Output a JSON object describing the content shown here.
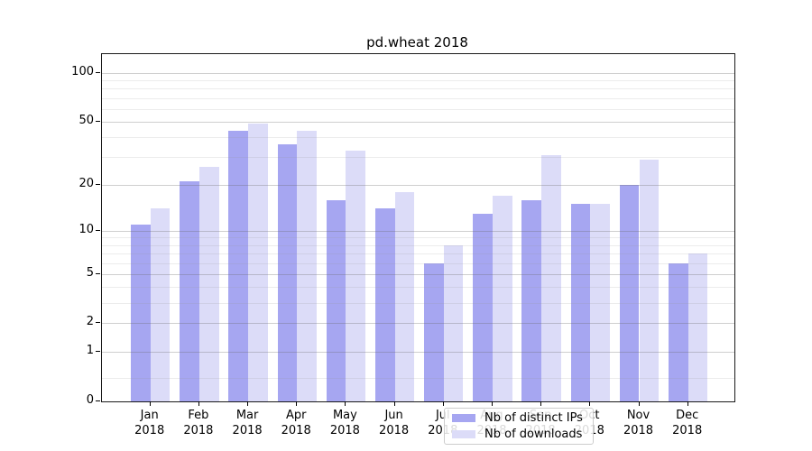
{
  "title": "pd.wheat 2018",
  "chart_data": {
    "type": "bar",
    "title": "pd.wheat 2018",
    "xlabel": "",
    "ylabel": "",
    "categories": [
      "Jan 2018",
      "Feb 2018",
      "Mar 2018",
      "Apr 2018",
      "May 2018",
      "Jun 2018",
      "Jul 2018",
      "Aug 2018",
      "Sep 2018",
      "Oct 2018",
      "Nov 2018",
      "Dec 2018"
    ],
    "series": [
      {
        "name": "Nb of distinct IPs",
        "color": "#a6a6f1",
        "values": [
          11,
          21,
          44,
          36,
          16,
          14,
          6,
          13,
          16,
          15,
          20,
          6
        ]
      },
      {
        "name": "Nb of downloads",
        "color": "#dcdcf8",
        "values": [
          14,
          26,
          49,
          44,
          33,
          18,
          8,
          17,
          31,
          15,
          29,
          7
        ]
      }
    ],
    "yscale": "log1p",
    "ylim": [
      0,
      131
    ],
    "y_tick_values": [
      100,
      50,
      20,
      10,
      5,
      2,
      1,
      0
    ],
    "y_tick_labels": [
      "100",
      "50",
      "20",
      "10",
      "5",
      "2",
      "1",
      "0"
    ],
    "minor_grid_values": [
      0.4,
      3,
      4,
      6,
      7,
      8,
      9,
      30,
      40,
      60,
      70,
      80,
      90
    ],
    "grid": "both",
    "legend_position": "lower center",
    "legend": [
      "Nb of distinct IPs",
      "Nb of downloads"
    ]
  }
}
